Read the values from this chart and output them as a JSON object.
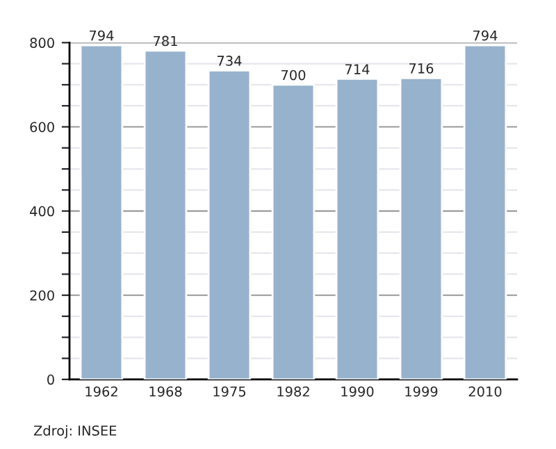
{
  "chart_data": {
    "type": "bar",
    "categories": [
      "1962",
      "1968",
      "1975",
      "1982",
      "1990",
      "1999",
      "2010"
    ],
    "values": [
      794,
      781,
      734,
      700,
      714,
      716,
      794
    ],
    "color": "#97b2cc",
    "ylim": [
      0,
      800
    ],
    "yticks": [
      0,
      {
        "value": 50,
        "label": null
      },
      {
        "value": 100,
        "label": null
      },
      {
        "value": 150,
        "label": null
      },
      200,
      {
        "value": 250,
        "label": null
      },
      {
        "value": 300,
        "label": null
      },
      {
        "value": 350,
        "label": null
      },
      400,
      {
        "value": 450,
        "label": null
      },
      {
        "value": 500,
        "label": null
      },
      {
        "value": 550,
        "label": null
      },
      600,
      {
        "value": 650,
        "label": null
      },
      {
        "value": 700,
        "label": null
      },
      {
        "value": 750,
        "label": null
      },
      800
    ],
    "grid": "y",
    "data_labels": true,
    "annotations": [
      "Zdroj: INSEE"
    ]
  }
}
